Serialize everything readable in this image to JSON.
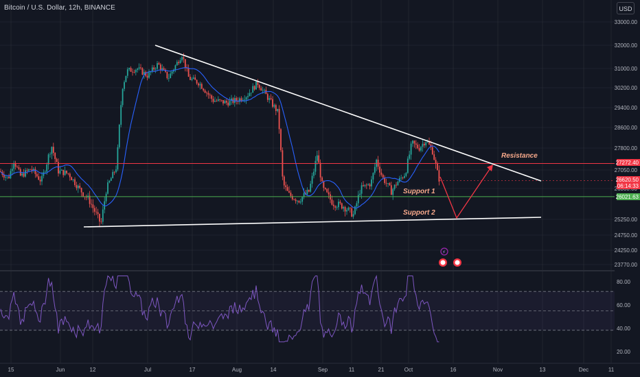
{
  "title": "Bitcoin / U.S. Dollar, 12h, BINANCE",
  "currency_button": "USD",
  "colors": {
    "background": "#131722",
    "grid": "#2a2e39",
    "candle_up": "#26a69a",
    "candle_down": "#ef5350",
    "ma_line": "#2962ff",
    "rsi_line": "#7e57c2",
    "resistance_line": "#f23645",
    "support_line": "#4caf50",
    "trendline": "#ffffff",
    "annotation_text": "#f7a98b"
  },
  "chart_data": {
    "type": "candlestick",
    "price_axis": {
      "ticks": [
        "33000.00",
        "32000.00",
        "31000.00",
        "30200.00",
        "29400.00",
        "28600.00",
        "27800.00",
        "27050.00",
        "26300.00",
        "25250.00",
        "24750.00",
        "24250.00",
        "23770.00"
      ]
    },
    "time_axis": {
      "ticks": [
        "15",
        "Jun",
        "12",
        "Jul",
        "17",
        "Aug",
        "14",
        "Sep",
        "11",
        "21",
        "Oct",
        "16",
        "Nov",
        "13",
        "Dec",
        "11"
      ]
    },
    "price_labels": [
      {
        "text": "27272.40",
        "color": "#f23645"
      },
      {
        "text": "26620.50",
        "color": "#f23645"
      },
      {
        "text": "06:14:33",
        "color": "#f23645"
      },
      {
        "text": "26021.63",
        "color": "#4caf50"
      }
    ],
    "annotations": [
      {
        "text": "Resistance"
      },
      {
        "text": "Support 1"
      },
      {
        "text": "Support 2"
      }
    ],
    "levels": {
      "resistance": 27272.4,
      "support": 26021.63,
      "last_close": 26620.5
    },
    "rsi": {
      "ticks": [
        "80.00",
        "60.00",
        "40.00",
        "20.00"
      ],
      "upper_band": 70,
      "middle": 50,
      "lower_band": 30
    }
  }
}
